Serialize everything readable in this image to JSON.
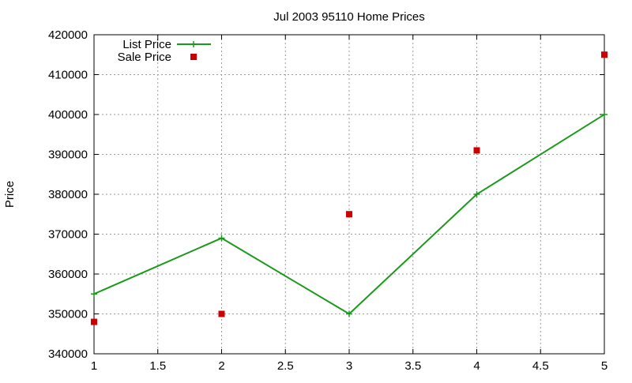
{
  "chart_data": {
    "type": "line",
    "title": "Jul 2003 95110 Home Prices",
    "xlabel": "",
    "ylabel": "Price",
    "xlim": [
      1,
      5
    ],
    "ylim": [
      340000,
      420000
    ],
    "xticks": [
      1,
      1.5,
      2,
      2.5,
      3,
      3.5,
      4,
      4.5,
      5
    ],
    "yticks": [
      340000,
      350000,
      360000,
      370000,
      380000,
      390000,
      400000,
      410000,
      420000
    ],
    "grid": true,
    "legend_position": "top-left",
    "series": [
      {
        "name": "List Price",
        "style": "line-with-plus-markers",
        "color": "#1a9a1a",
        "x": [
          1,
          2,
          3,
          4,
          5
        ],
        "y": [
          355000,
          369000,
          350000,
          380000,
          400000
        ]
      },
      {
        "name": "Sale Price",
        "style": "square-markers",
        "color": "#cc0000",
        "x": [
          1,
          2,
          3,
          4,
          5
        ],
        "y": [
          348000,
          350000,
          375000,
          391000,
          415000
        ]
      }
    ]
  }
}
